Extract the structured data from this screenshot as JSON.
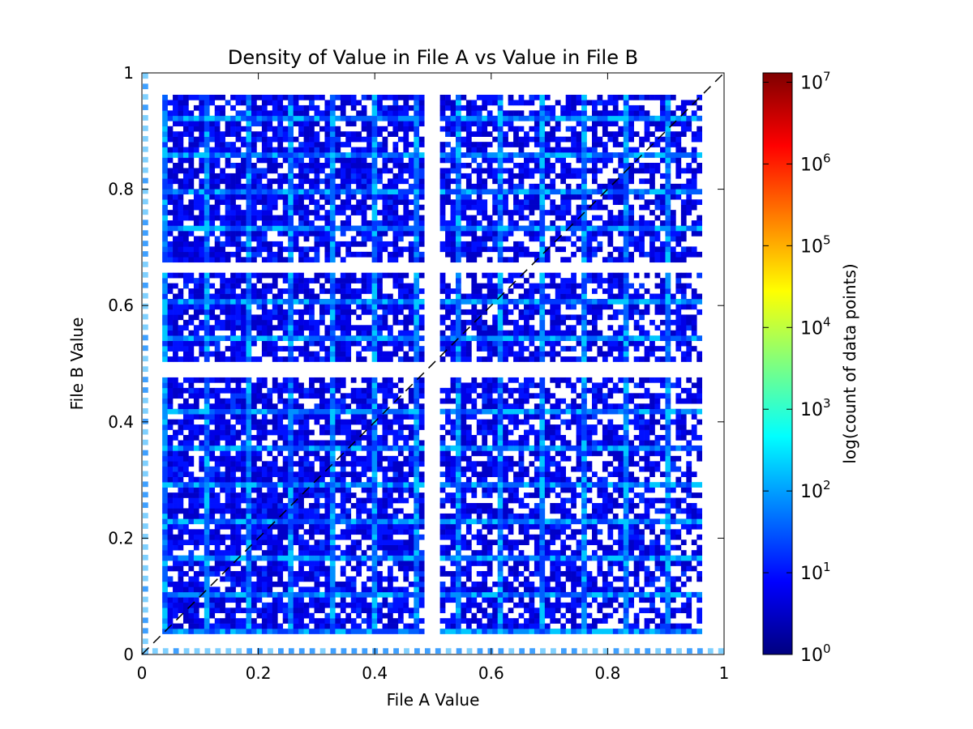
{
  "chart_data": {
    "type": "heatmap",
    "title": "Density of Value in File A vs Value in File B",
    "xlabel": "File A Value",
    "ylabel": "File B Value",
    "xlim": [
      0,
      1
    ],
    "ylim": [
      0,
      1
    ],
    "x_ticks": [
      {
        "value": 0,
        "label": "0"
      },
      {
        "value": 0.2,
        "label": "0.2"
      },
      {
        "value": 0.4,
        "label": "0.4"
      },
      {
        "value": 0.6,
        "label": "0.6"
      },
      {
        "value": 0.8,
        "label": "0.8"
      },
      {
        "value": 1,
        "label": "1"
      }
    ],
    "y_ticks": [
      {
        "value": 0,
        "label": "0"
      },
      {
        "value": 0.2,
        "label": "0.2"
      },
      {
        "value": 0.4,
        "label": "0.4"
      },
      {
        "value": 0.6,
        "label": "0.6"
      },
      {
        "value": 0.8,
        "label": "0.8"
      },
      {
        "value": 1,
        "label": "1"
      }
    ],
    "reference_line": {
      "from": [
        0,
        0
      ],
      "to": [
        1,
        1
      ],
      "style": "dashed",
      "color": "#000000"
    },
    "data_x_extent": [
      0.035,
      0.955
    ],
    "data_y_extent": [
      0.035,
      0.955
    ],
    "x_gaps": [
      0.495
    ],
    "y_gaps": [
      0.485,
      0.66
    ],
    "colorbar": {
      "label": "log(count of data points)",
      "scale": "log",
      "range": [
        1,
        13000000
      ],
      "ticks": [
        {
          "value": 1,
          "base": "10",
          "exp": "0"
        },
        {
          "value": 10,
          "base": "10",
          "exp": "1"
        },
        {
          "value": 100,
          "base": "10",
          "exp": "2"
        },
        {
          "value": 1000,
          "base": "10",
          "exp": "3"
        },
        {
          "value": 10000,
          "base": "10",
          "exp": "4"
        },
        {
          "value": 100000,
          "base": "10",
          "exp": "5"
        },
        {
          "value": 1000000,
          "base": "10",
          "exp": "6"
        },
        {
          "value": 10000000,
          "base": "10",
          "exp": "7"
        }
      ],
      "colormap": "jet",
      "colors": [
        "#00007f",
        "#0000ff",
        "#007fff",
        "#00ffff",
        "#7fff7f",
        "#ffff00",
        "#ff7f00",
        "#ff0000",
        "#7f0000"
      ]
    }
  }
}
